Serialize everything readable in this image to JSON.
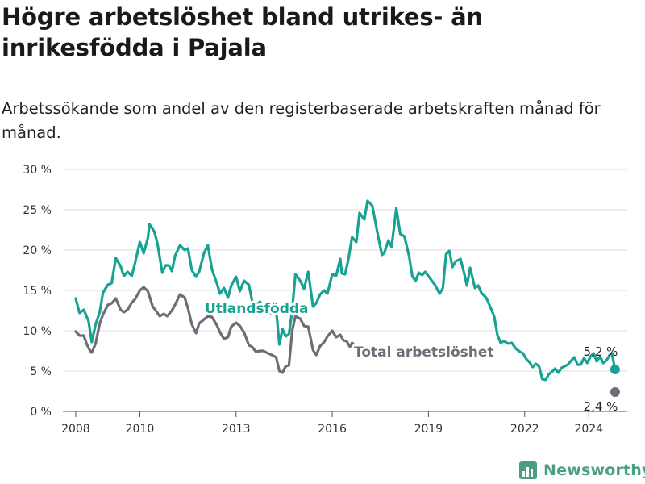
{
  "title": "Högre arbetslöshet bland utrikes- än inrikesfödda i Pajala",
  "subtitle": "Arbetssökande som andel av den registerbaserade arbetskraften månad för månad.",
  "brand": {
    "name": "Newsworthy",
    "icon": "bar-chart-logo-icon"
  },
  "chart_data": {
    "type": "line",
    "title": "Högre arbetslöshet bland utrikes- än inrikesfödda i Pajala",
    "xlabel": "",
    "ylabel": "",
    "ylim": [
      0,
      30
    ],
    "xlim": [
      2007.6,
      2025.2
    ],
    "grid": true,
    "legend": "inline labels",
    "y_ticks": [
      {
        "value": 0,
        "label": "0 %"
      },
      {
        "value": 5,
        "label": "5 %"
      },
      {
        "value": 10,
        "label": "10 %"
      },
      {
        "value": 15,
        "label": "15 %"
      },
      {
        "value": 20,
        "label": "20 %"
      },
      {
        "value": 25,
        "label": "25 %"
      },
      {
        "value": 30,
        "label": "30 %"
      }
    ],
    "x_ticks": [
      {
        "value": 2008,
        "label": "2008"
      },
      {
        "value": 2010,
        "label": "2010"
      },
      {
        "value": 2013,
        "label": "2013"
      },
      {
        "value": 2016,
        "label": "2016"
      },
      {
        "value": 2019,
        "label": "2019"
      },
      {
        "value": 2022,
        "label": "2022"
      },
      {
        "value": 2024,
        "label": "2024"
      }
    ],
    "series": [
      {
        "name": "Utlandsfödda",
        "color": "#17a293",
        "end_label": "5,2 %",
        "points": [
          [
            2008.0,
            14.0
          ],
          [
            2008.12,
            12.2
          ],
          [
            2008.25,
            12.6
          ],
          [
            2008.4,
            11.2
          ],
          [
            2008.5,
            8.6
          ],
          [
            2008.62,
            10.8
          ],
          [
            2008.75,
            12.3
          ],
          [
            2008.85,
            14.7
          ],
          [
            2009.0,
            15.7
          ],
          [
            2009.12,
            15.9
          ],
          [
            2009.25,
            19.0
          ],
          [
            2009.4,
            18.0
          ],
          [
            2009.5,
            16.8
          ],
          [
            2009.62,
            17.3
          ],
          [
            2009.75,
            16.8
          ],
          [
            2009.85,
            18.4
          ],
          [
            2010.0,
            21.0
          ],
          [
            2010.12,
            19.6
          ],
          [
            2010.25,
            21.5
          ],
          [
            2010.3,
            23.2
          ],
          [
            2010.45,
            22.3
          ],
          [
            2010.55,
            20.8
          ],
          [
            2010.7,
            17.2
          ],
          [
            2010.8,
            18.1
          ],
          [
            2010.9,
            18.1
          ],
          [
            2011.0,
            17.4
          ],
          [
            2011.1,
            19.3
          ],
          [
            2011.25,
            20.6
          ],
          [
            2011.4,
            20.0
          ],
          [
            2011.5,
            20.2
          ],
          [
            2011.62,
            17.5
          ],
          [
            2011.75,
            16.7
          ],
          [
            2011.85,
            17.3
          ],
          [
            2012.0,
            19.6
          ],
          [
            2012.12,
            20.6
          ],
          [
            2012.25,
            17.6
          ],
          [
            2012.4,
            15.9
          ],
          [
            2012.5,
            14.6
          ],
          [
            2012.62,
            15.3
          ],
          [
            2012.75,
            14.1
          ],
          [
            2012.85,
            15.6
          ],
          [
            2013.0,
            16.7
          ],
          [
            2013.12,
            14.9
          ],
          [
            2013.25,
            16.2
          ],
          [
            2013.4,
            15.7
          ],
          [
            2013.5,
            13.7
          ],
          [
            2013.62,
            13.2
          ],
          [
            2013.75,
            13.6
          ],
          [
            2013.85,
            12.2
          ],
          [
            2014.0,
            12.5
          ],
          [
            2014.12,
            12.1
          ],
          [
            2014.25,
            12.6
          ],
          [
            2014.35,
            8.3
          ],
          [
            2014.45,
            10.2
          ],
          [
            2014.55,
            9.3
          ],
          [
            2014.65,
            9.6
          ],
          [
            2014.75,
            12.5
          ],
          [
            2014.85,
            17.0
          ],
          [
            2015.0,
            16.2
          ],
          [
            2015.12,
            15.2
          ],
          [
            2015.25,
            17.3
          ],
          [
            2015.4,
            13.0
          ],
          [
            2015.5,
            13.4
          ],
          [
            2015.62,
            14.5
          ],
          [
            2015.75,
            15.0
          ],
          [
            2015.85,
            14.6
          ],
          [
            2016.0,
            17.0
          ],
          [
            2016.12,
            16.8
          ],
          [
            2016.25,
            18.9
          ],
          [
            2016.3,
            17.1
          ],
          [
            2016.4,
            17.0
          ],
          [
            2016.5,
            18.8
          ],
          [
            2016.62,
            21.6
          ],
          [
            2016.75,
            21.0
          ],
          [
            2016.85,
            24.6
          ],
          [
            2017.0,
            23.8
          ],
          [
            2017.1,
            26.1
          ],
          [
            2017.25,
            25.5
          ],
          [
            2017.4,
            22.3
          ],
          [
            2017.55,
            19.4
          ],
          [
            2017.62,
            19.6
          ],
          [
            2017.75,
            21.2
          ],
          [
            2017.85,
            20.4
          ],
          [
            2018.0,
            25.2
          ],
          [
            2018.12,
            22.0
          ],
          [
            2018.25,
            21.7
          ],
          [
            2018.4,
            19.2
          ],
          [
            2018.5,
            16.7
          ],
          [
            2018.6,
            16.2
          ],
          [
            2018.7,
            17.2
          ],
          [
            2018.8,
            16.9
          ],
          [
            2018.9,
            17.3
          ],
          [
            2019.05,
            16.5
          ],
          [
            2019.2,
            15.7
          ],
          [
            2019.35,
            14.6
          ],
          [
            2019.45,
            15.3
          ],
          [
            2019.55,
            19.5
          ],
          [
            2019.65,
            19.9
          ],
          [
            2019.75,
            17.9
          ],
          [
            2019.85,
            18.6
          ],
          [
            2020.0,
            18.9
          ],
          [
            2020.12,
            17.0
          ],
          [
            2020.2,
            15.6
          ],
          [
            2020.3,
            17.8
          ],
          [
            2020.45,
            15.3
          ],
          [
            2020.55,
            15.6
          ],
          [
            2020.65,
            14.7
          ],
          [
            2020.8,
            14.1
          ],
          [
            2020.9,
            13.2
          ],
          [
            2021.05,
            11.8
          ],
          [
            2021.15,
            9.5
          ],
          [
            2021.25,
            8.5
          ],
          [
            2021.35,
            8.7
          ],
          [
            2021.5,
            8.4
          ],
          [
            2021.6,
            8.5
          ],
          [
            2021.72,
            7.8
          ],
          [
            2021.85,
            7.4
          ],
          [
            2021.95,
            7.2
          ],
          [
            2022.05,
            6.5
          ],
          [
            2022.15,
            6.1
          ],
          [
            2022.25,
            5.5
          ],
          [
            2022.35,
            5.9
          ],
          [
            2022.45,
            5.6
          ],
          [
            2022.55,
            4.0
          ],
          [
            2022.65,
            3.9
          ],
          [
            2022.75,
            4.6
          ],
          [
            2022.85,
            4.9
          ],
          [
            2022.95,
            5.3
          ],
          [
            2023.05,
            4.8
          ],
          [
            2023.15,
            5.4
          ],
          [
            2023.25,
            5.6
          ],
          [
            2023.35,
            5.8
          ],
          [
            2023.45,
            6.3
          ],
          [
            2023.55,
            6.7
          ],
          [
            2023.65,
            5.8
          ],
          [
            2023.75,
            5.8
          ],
          [
            2023.85,
            6.6
          ],
          [
            2023.95,
            6.0
          ],
          [
            2024.05,
            6.8
          ],
          [
            2024.15,
            7.2
          ],
          [
            2024.25,
            6.2
          ],
          [
            2024.35,
            6.8
          ],
          [
            2024.45,
            6.0
          ],
          [
            2024.55,
            6.3
          ],
          [
            2024.65,
            7.0
          ],
          [
            2024.72,
            7.2
          ],
          [
            2024.82,
            5.2
          ]
        ]
      },
      {
        "name": "Total arbetslöshet",
        "color": "#6e6c76",
        "end_label": "2,4 %",
        "points": [
          [
            2008.0,
            9.9
          ],
          [
            2008.12,
            9.4
          ],
          [
            2008.25,
            9.4
          ],
          [
            2008.35,
            8.3
          ],
          [
            2008.45,
            7.5
          ],
          [
            2008.5,
            7.3
          ],
          [
            2008.62,
            8.4
          ],
          [
            2008.75,
            10.9
          ],
          [
            2008.85,
            12.0
          ],
          [
            2009.0,
            13.2
          ],
          [
            2009.12,
            13.4
          ],
          [
            2009.25,
            14.0
          ],
          [
            2009.4,
            12.6
          ],
          [
            2009.5,
            12.3
          ],
          [
            2009.62,
            12.6
          ],
          [
            2009.75,
            13.5
          ],
          [
            2009.85,
            13.9
          ],
          [
            2010.0,
            15.0
          ],
          [
            2010.12,
            15.4
          ],
          [
            2010.25,
            14.9
          ],
          [
            2010.4,
            13.0
          ],
          [
            2010.5,
            12.5
          ],
          [
            2010.62,
            11.8
          ],
          [
            2010.75,
            12.1
          ],
          [
            2010.85,
            11.8
          ],
          [
            2011.0,
            12.5
          ],
          [
            2011.12,
            13.4
          ],
          [
            2011.25,
            14.5
          ],
          [
            2011.4,
            14.1
          ],
          [
            2011.5,
            12.8
          ],
          [
            2011.62,
            10.8
          ],
          [
            2011.75,
            9.7
          ],
          [
            2011.85,
            10.9
          ],
          [
            2012.0,
            11.4
          ],
          [
            2012.12,
            11.8
          ],
          [
            2012.25,
            11.7
          ],
          [
            2012.4,
            10.7
          ],
          [
            2012.5,
            9.8
          ],
          [
            2012.62,
            9.0
          ],
          [
            2012.75,
            9.2
          ],
          [
            2012.85,
            10.5
          ],
          [
            2013.0,
            11.0
          ],
          [
            2013.12,
            10.6
          ],
          [
            2013.25,
            9.8
          ],
          [
            2013.4,
            8.2
          ],
          [
            2013.5,
            8.0
          ],
          [
            2013.62,
            7.4
          ],
          [
            2013.75,
            7.5
          ],
          [
            2013.85,
            7.5
          ],
          [
            2014.0,
            7.2
          ],
          [
            2014.12,
            7.0
          ],
          [
            2014.25,
            6.7
          ],
          [
            2014.35,
            5.0
          ],
          [
            2014.45,
            4.8
          ],
          [
            2014.55,
            5.6
          ],
          [
            2014.65,
            5.7
          ],
          [
            2014.75,
            10.0
          ],
          [
            2014.85,
            11.8
          ],
          [
            2015.0,
            11.5
          ],
          [
            2015.12,
            10.6
          ],
          [
            2015.25,
            10.5
          ],
          [
            2015.4,
            7.6
          ],
          [
            2015.5,
            7.0
          ],
          [
            2015.62,
            8.1
          ],
          [
            2015.75,
            8.6
          ],
          [
            2015.85,
            9.3
          ],
          [
            2016.0,
            10.0
          ],
          [
            2016.12,
            9.2
          ],
          [
            2016.25,
            9.5
          ],
          [
            2016.35,
            8.8
          ],
          [
            2016.45,
            8.7
          ],
          [
            2016.55,
            8.0
          ],
          [
            2016.62,
            8.5
          ],
          [
            2016.7,
            8.2
          ]
        ]
      }
    ],
    "inline_labels": [
      {
        "text": "Utlandsfödda",
        "color": "#17a293"
      },
      {
        "text": "Total arbetslöshet",
        "color": "#6e6c76"
      }
    ]
  }
}
